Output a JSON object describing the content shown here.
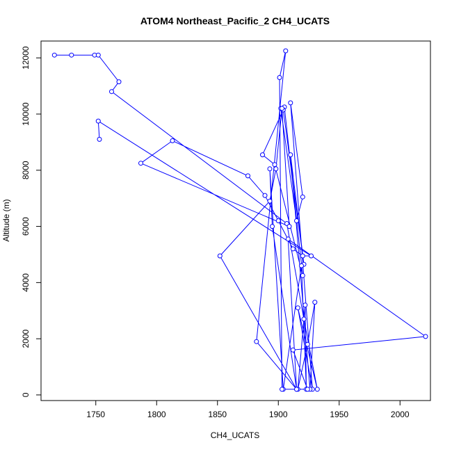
{
  "chart_data": {
    "type": "line",
    "title": "ATOM4 Northeast_Pacific_2 CH4_UCATS",
    "xlabel": "CH4_UCATS",
    "ylabel": "Altitude (m)",
    "xlim": [
      1705,
      2025
    ],
    "ylim": [
      -200,
      12600
    ],
    "xticks": [
      1750,
      1800,
      1850,
      1900,
      1950,
      2000
    ],
    "yticks": [
      0,
      2000,
      4000,
      6000,
      8000,
      10000,
      12000
    ],
    "markers": "open-circle",
    "color": "#0000ff",
    "grid": false,
    "series": [
      {
        "x": [
          1716,
          1730,
          1749,
          1752,
          1769,
          1763,
          1907,
          1921,
          1932,
          1916,
          1928,
          1910,
          1920,
          1915,
          1902,
          1905,
          1920,
          1897,
          1887,
          1904,
          1921,
          1910,
          1926,
          1930,
          1924,
          1916,
          1922,
          1923,
          1919,
          1904,
          1893,
          1895,
          1915,
          1908,
          2021,
          1912,
          1924,
          1903,
          1901,
          1906,
          1882,
          1915,
          1852,
          1893,
          1898,
          1903,
          1909,
          1787,
          1813,
          1875,
          1889,
          1900,
          1912,
          1920,
          1927,
          1752,
          1753
        ],
        "y": [
          12100,
          12100,
          12100,
          12100,
          11150,
          10800,
          6100,
          2700,
          200,
          3100,
          200,
          10400,
          7050,
          6200,
          10200,
          10250,
          4250,
          8200,
          8550,
          10150,
          4650,
          8550,
          200,
          3300,
          1800,
          200,
          3200,
          200,
          4600,
          200,
          8050,
          6000,
          200,
          5550,
          2080,
          1600,
          200,
          200,
          11300,
          12250,
          1900,
          200,
          4950,
          6900,
          8050,
          10200,
          6000,
          8250,
          9050,
          7800,
          7100,
          6200,
          5200,
          4950,
          4950,
          9750,
          9100
        ]
      }
    ]
  }
}
